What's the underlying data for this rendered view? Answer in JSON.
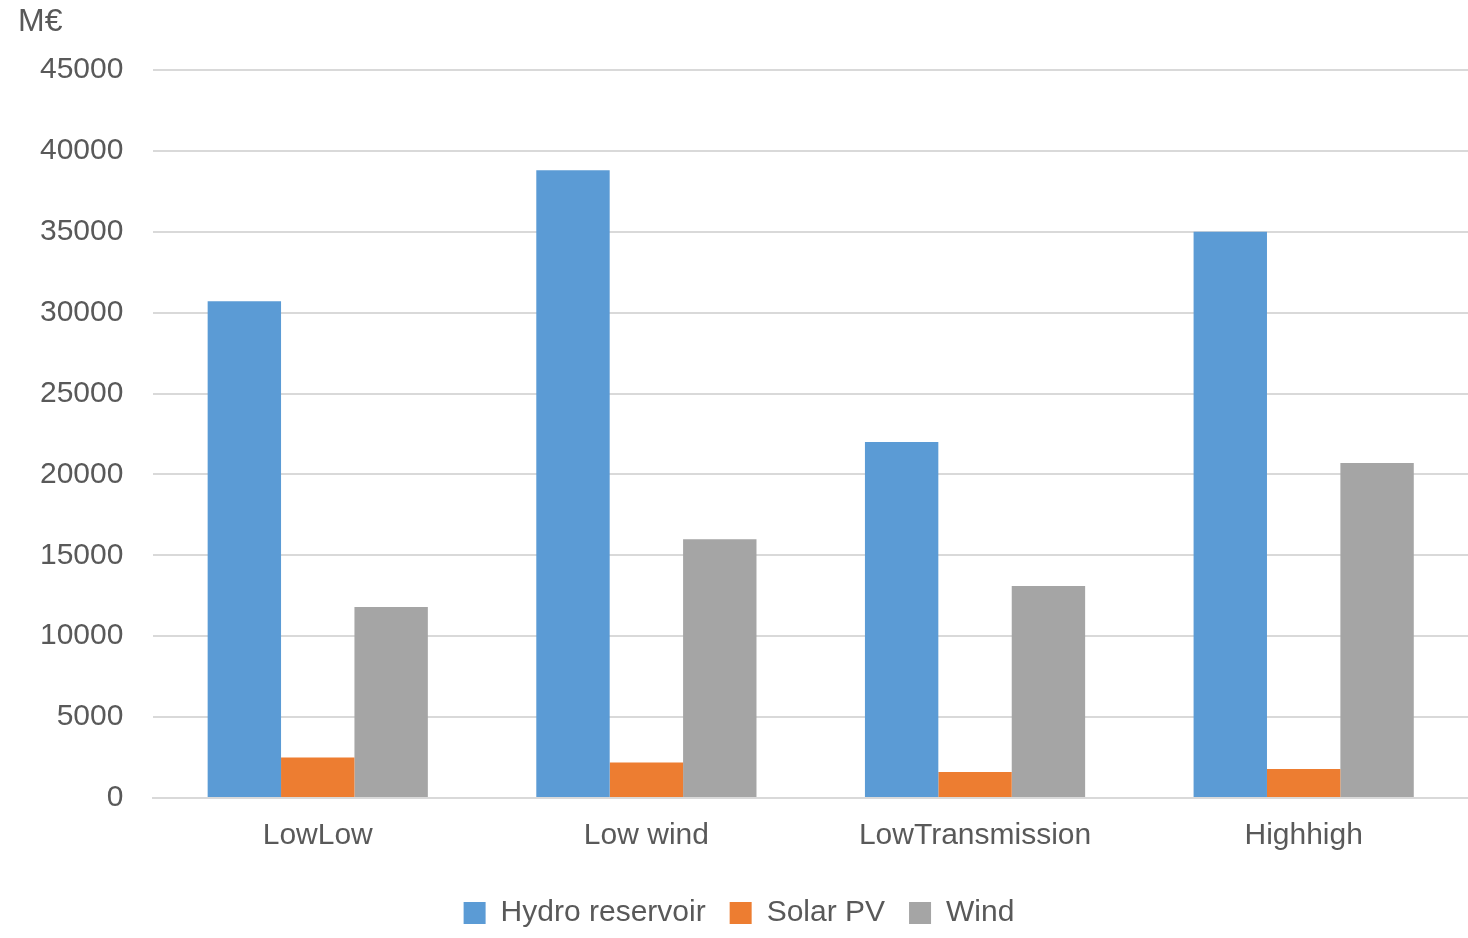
{
  "chart_data": {
    "type": "bar",
    "ylabel": "M€",
    "categories": [
      "LowLow",
      "Low wind",
      "LowTransmission",
      "Highhigh"
    ],
    "series": [
      {
        "name": "Hydro reservoir",
        "color": "#5b9bd5",
        "values": [
          30700,
          38800,
          22000,
          35000
        ]
      },
      {
        "name": "Solar PV",
        "color": "#ed7d31",
        "values": [
          2500,
          2200,
          1600,
          1800
        ]
      },
      {
        "name": "Wind",
        "color": "#a5a5a5",
        "values": [
          11800,
          16000,
          13100,
          20700
        ]
      }
    ],
    "ylim": [
      0,
      45000
    ],
    "yticks": [
      0,
      5000,
      10000,
      15000,
      20000,
      25000,
      30000,
      35000,
      40000,
      45000
    ],
    "grid": "y",
    "legend": "bottom"
  }
}
